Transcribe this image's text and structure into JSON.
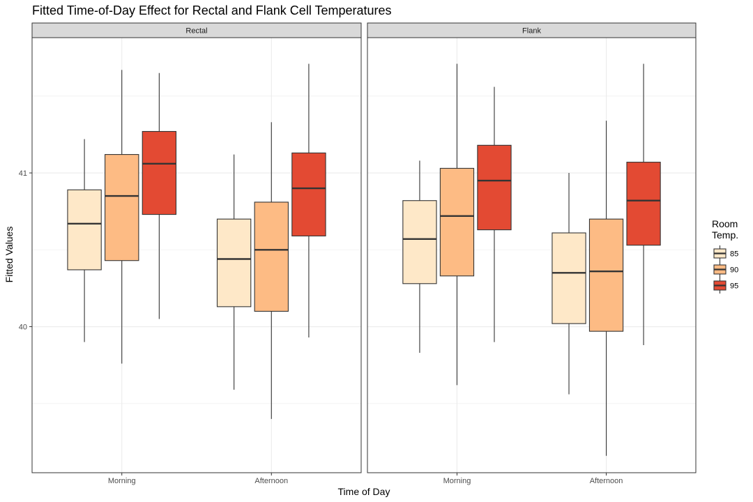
{
  "chart_data": {
    "type": "box",
    "title": "Fitted Time-of-Day Effect for Rectal and Flank Cell Temperatures",
    "xlabel": "Time of Day",
    "ylabel": "Fitted Values",
    "ylim": [
      39.05,
      41.88
    ],
    "yticks": [
      40,
      41
    ],
    "ytick_labels": [
      "40",
      "41"
    ],
    "grid": true,
    "categories": [
      "Morning",
      "Afternoon"
    ],
    "legend": {
      "title_lines": [
        "Room",
        "Temp."
      ],
      "placement": "right",
      "entries": [
        {
          "label": "85",
          "color": "#fee8c8"
        },
        {
          "label": "90",
          "color": "#fdbb84"
        },
        {
          "label": "95",
          "color": "#e34a33"
        }
      ]
    },
    "panels": [
      {
        "name": "Rectal",
        "groups": [
          {
            "category": "Morning",
            "boxes": [
              {
                "series": "85",
                "whisker_low": 39.9,
                "q1": 40.37,
                "median": 40.67,
                "q3": 40.89,
                "whisker_high": 41.22
              },
              {
                "series": "90",
                "whisker_low": 39.76,
                "q1": 40.43,
                "median": 40.85,
                "q3": 41.12,
                "whisker_high": 41.67
              },
              {
                "series": "95",
                "whisker_low": 40.05,
                "q1": 40.73,
                "median": 41.06,
                "q3": 41.27,
                "whisker_high": 41.65
              }
            ]
          },
          {
            "category": "Afternoon",
            "boxes": [
              {
                "series": "85",
                "whisker_low": 39.59,
                "q1": 40.13,
                "median": 40.44,
                "q3": 40.7,
                "whisker_high": 41.12
              },
              {
                "series": "90",
                "whisker_low": 39.4,
                "q1": 40.1,
                "median": 40.5,
                "q3": 40.81,
                "whisker_high": 41.33
              },
              {
                "series": "95",
                "whisker_low": 39.93,
                "q1": 40.59,
                "median": 40.9,
                "q3": 41.13,
                "whisker_high": 41.71
              }
            ]
          }
        ]
      },
      {
        "name": "Flank",
        "groups": [
          {
            "category": "Morning",
            "boxes": [
              {
                "series": "85",
                "whisker_low": 39.83,
                "q1": 40.28,
                "median": 40.57,
                "q3": 40.82,
                "whisker_high": 41.08
              },
              {
                "series": "90",
                "whisker_low": 39.62,
                "q1": 40.33,
                "median": 40.72,
                "q3": 41.03,
                "whisker_high": 41.71
              },
              {
                "series": "95",
                "whisker_low": 39.9,
                "q1": 40.63,
                "median": 40.95,
                "q3": 41.18,
                "whisker_high": 41.56
              }
            ]
          },
          {
            "category": "Afternoon",
            "boxes": [
              {
                "series": "85",
                "whisker_low": 39.56,
                "q1": 40.02,
                "median": 40.35,
                "q3": 40.61,
                "whisker_high": 41.0
              },
              {
                "series": "90",
                "whisker_low": 39.16,
                "q1": 39.97,
                "median": 40.36,
                "q3": 40.7,
                "whisker_high": 41.34
              },
              {
                "series": "95",
                "whisker_low": 39.88,
                "q1": 40.53,
                "median": 40.82,
                "q3": 41.07,
                "whisker_high": 41.71
              }
            ]
          }
        ]
      }
    ]
  }
}
